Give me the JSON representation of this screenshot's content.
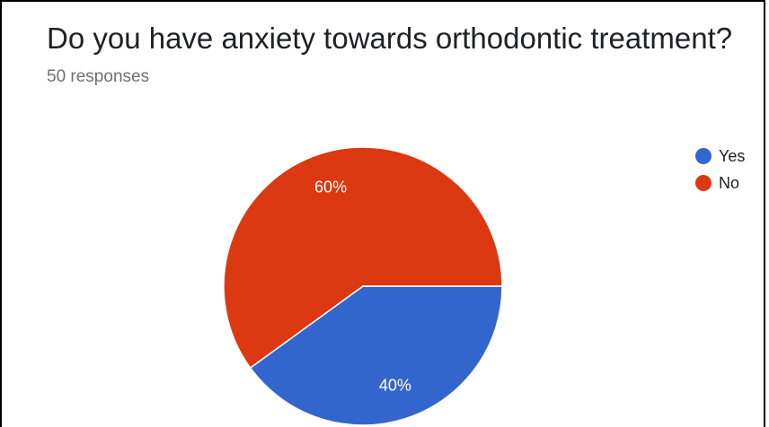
{
  "chart_data": {
    "type": "pie",
    "title": "Do you have anxiety towards orthodontic treatment?",
    "subtitle": "50 responses",
    "categories": [
      "Yes",
      "No"
    ],
    "values": [
      40,
      60
    ],
    "labels": [
      "40%",
      "60%"
    ],
    "colors": [
      "#3366cc",
      "#dc3912"
    ],
    "legend_position": "right"
  }
}
